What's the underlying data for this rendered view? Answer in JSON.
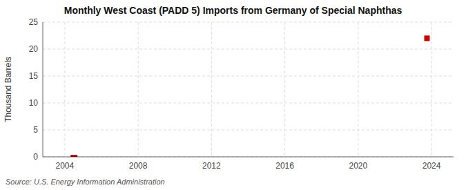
{
  "chart_data": {
    "type": "bar",
    "title": "Monthly West Coast (PADD 5) Imports from Germany of Special Naphthas",
    "ylabel": "Thousand Barrels",
    "annotations": [
      "Source: U.S. Energy Information Administration"
    ],
    "series": [
      {
        "type": "bar",
        "color": "#990000",
        "x": [
          2004.5
        ],
        "values": [
          0.35
        ]
      },
      {
        "type": "scatter",
        "color": "#cc0000",
        "marker": "square",
        "x": [
          2023.75
        ],
        "values": [
          22
        ]
      }
    ],
    "xlim": [
      2002.8,
      2025.2
    ],
    "xticks": [
      2004,
      2008,
      2012,
      2016,
      2020,
      2024
    ],
    "ylim": [
      0,
      25
    ],
    "yticks": [
      0,
      5,
      10,
      15,
      20,
      25
    ],
    "grid": true
  }
}
